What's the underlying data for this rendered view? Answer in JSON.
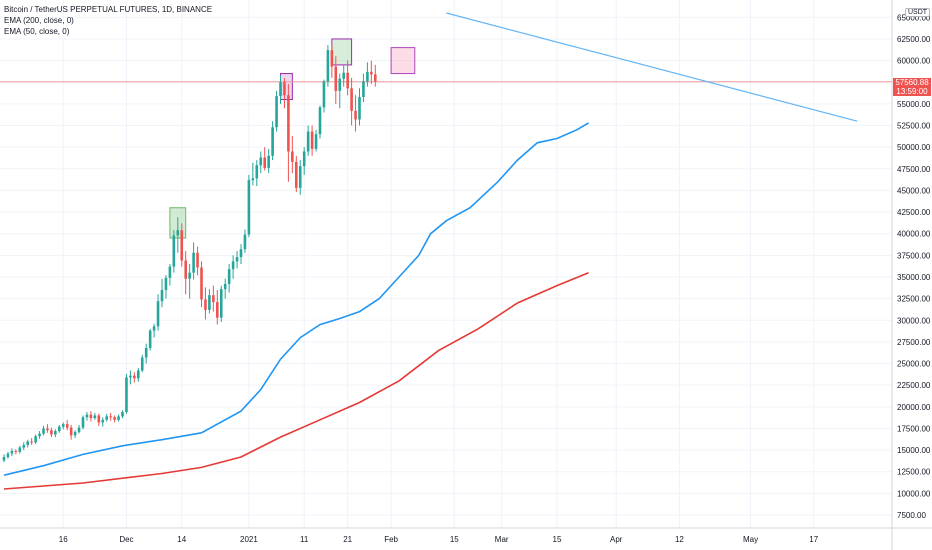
{
  "legend": {
    "symbol": "Bitcoin / TetherUS PERPETUAL FUTURES, 1D, BINANCE",
    "ema200": "EMA (200, close, 0)",
    "ema50": "EMA (50, close, 0)"
  },
  "currency": "USDT",
  "current_price": "57560.88",
  "countdown": "13:59:00",
  "colors": {
    "up": "#26a69a",
    "down": "#ef5350",
    "ema50": "#2196f3",
    "ema200": "#e53935",
    "trendline": "#64b5f6",
    "grid": "#f0f3fa",
    "price_line": "#ef9a9a"
  },
  "chart_data": {
    "type": "candlestick",
    "title": "Bitcoin / TetherUS PERPETUAL FUTURES, 1D, BINANCE",
    "x_ticks": [
      "16",
      "Dec",
      "14",
      "2021",
      "11",
      "21",
      "Feb",
      "15",
      "Mar",
      "15",
      "Apr",
      "12",
      "May",
      "17"
    ],
    "y_ticks": [
      7500,
      10000,
      12500,
      15000,
      17500,
      20000,
      22500,
      25000,
      27500,
      30000,
      32500,
      35000,
      37500,
      40000,
      42500,
      45000,
      47500,
      50000,
      52500,
      55000,
      57500,
      60000,
      62500,
      65000
    ],
    "ylim": [
      6000,
      67000
    ],
    "series": [
      {
        "name": "EMA (50, close, 0)",
        "points": [
          {
            "day": 0,
            "value": 12100
          },
          {
            "day": 10,
            "value": 13200
          },
          {
            "day": 20,
            "value": 14500
          },
          {
            "day": 30,
            "value": 15500
          },
          {
            "day": 40,
            "value": 16200
          },
          {
            "day": 50,
            "value": 17000
          },
          {
            "day": 60,
            "value": 19500
          },
          {
            "day": 65,
            "value": 22000
          },
          {
            "day": 70,
            "value": 25500
          },
          {
            "day": 75,
            "value": 28000
          },
          {
            "day": 80,
            "value": 29500
          },
          {
            "day": 85,
            "value": 30200
          },
          {
            "day": 90,
            "value": 31000
          },
          {
            "day": 95,
            "value": 32500
          },
          {
            "day": 100,
            "value": 35000
          },
          {
            "day": 105,
            "value": 37500
          },
          {
            "day": 108,
            "value": 40000
          },
          {
            "day": 112,
            "value": 41500
          },
          {
            "day": 118,
            "value": 43000
          },
          {
            "day": 125,
            "value": 46000
          },
          {
            "day": 130,
            "value": 48500
          },
          {
            "day": 135,
            "value": 50500
          },
          {
            "day": 140,
            "value": 51000
          },
          {
            "day": 145,
            "value": 52000
          },
          {
            "day": 148,
            "value": 52800
          }
        ]
      },
      {
        "name": "EMA (200, close, 0)",
        "points": [
          {
            "day": 0,
            "value": 10500
          },
          {
            "day": 20,
            "value": 11200
          },
          {
            "day": 40,
            "value": 12300
          },
          {
            "day": 50,
            "value": 13000
          },
          {
            "day": 60,
            "value": 14200
          },
          {
            "day": 70,
            "value": 16500
          },
          {
            "day": 80,
            "value": 18500
          },
          {
            "day": 90,
            "value": 20500
          },
          {
            "day": 100,
            "value": 23000
          },
          {
            "day": 110,
            "value": 26500
          },
          {
            "day": 120,
            "value": 29000
          },
          {
            "day": 130,
            "value": 32000
          },
          {
            "day": 140,
            "value": 34000
          },
          {
            "day": 148,
            "value": 35500
          }
        ]
      }
    ],
    "candles": [
      [
        13800,
        14500,
        13600,
        14200
      ],
      [
        14200,
        14800,
        14000,
        14600
      ],
      [
        14600,
        15200,
        14300,
        14900
      ],
      [
        14900,
        15100,
        14500,
        14800
      ],
      [
        14800,
        15500,
        14600,
        15300
      ],
      [
        15300,
        15900,
        15000,
        15600
      ],
      [
        15600,
        16200,
        15300,
        16000
      ],
      [
        16000,
        16400,
        15600,
        15900
      ],
      [
        15900,
        16800,
        15700,
        16600
      ],
      [
        16600,
        17200,
        16300,
        16900
      ],
      [
        16900,
        17800,
        16700,
        17500
      ],
      [
        17500,
        18000,
        17000,
        17300
      ],
      [
        17300,
        17600,
        16500,
        16800
      ],
      [
        16800,
        17400,
        16500,
        17200
      ],
      [
        17200,
        17900,
        17000,
        17700
      ],
      [
        17700,
        18200,
        17400,
        18000
      ],
      [
        18000,
        18500,
        17300,
        17600
      ],
      [
        17600,
        17900,
        16200,
        16700
      ],
      [
        16700,
        17300,
        16400,
        17100
      ],
      [
        17100,
        17900,
        16900,
        17600
      ],
      [
        17600,
        19000,
        17400,
        18800
      ],
      [
        18800,
        19400,
        18400,
        19100
      ],
      [
        19100,
        19500,
        18300,
        18700
      ],
      [
        18700,
        19300,
        18500,
        19000
      ],
      [
        19000,
        19200,
        17800,
        18200
      ],
      [
        18200,
        18800,
        17700,
        18500
      ],
      [
        18500,
        19200,
        18300,
        18900
      ],
      [
        18900,
        19300,
        18400,
        18800
      ],
      [
        18800,
        19000,
        18200,
        18500
      ],
      [
        18500,
        19100,
        18300,
        18900
      ],
      [
        18900,
        19600,
        18700,
        19400
      ],
      [
        19400,
        23800,
        19200,
        23400
      ],
      [
        23400,
        24200,
        22600,
        23600
      ],
      [
        23600,
        24000,
        22800,
        23300
      ],
      [
        23300,
        24500,
        22900,
        24200
      ],
      [
        24200,
        26000,
        24000,
        25700
      ],
      [
        25700,
        27300,
        25000,
        26800
      ],
      [
        26800,
        29000,
        26500,
        28800
      ],
      [
        28800,
        29600,
        28000,
        29300
      ],
      [
        29300,
        33000,
        28800,
        32200
      ],
      [
        32200,
        34800,
        31500,
        33500
      ],
      [
        33500,
        35200,
        32500,
        34900
      ],
      [
        34900,
        36500,
        34000,
        36200
      ],
      [
        36200,
        40400,
        35500,
        39800
      ],
      [
        39800,
        41900,
        37800,
        40400
      ],
      [
        40400,
        41200,
        36200,
        36900
      ],
      [
        36900,
        38000,
        33000,
        34800
      ],
      [
        34800,
        36500,
        32500,
        35500
      ],
      [
        35500,
        39000,
        34700,
        37800
      ],
      [
        37800,
        38500,
        35200,
        36100
      ],
      [
        36100,
        36800,
        31500,
        32400
      ],
      [
        32400,
        33800,
        30100,
        31200
      ],
      [
        31200,
        33600,
        30800,
        32900
      ],
      [
        32900,
        34000,
        31000,
        32100
      ],
      [
        32100,
        33500,
        29500,
        30300
      ],
      [
        30300,
        34000,
        29800,
        33600
      ],
      [
        33600,
        34800,
        32500,
        34200
      ],
      [
        34200,
        36500,
        33200,
        35900
      ],
      [
        35900,
        37500,
        34800,
        36800
      ],
      [
        36800,
        38000,
        36000,
        37300
      ],
      [
        37300,
        38800,
        36500,
        38200
      ],
      [
        38200,
        40500,
        37800,
        39900
      ],
      [
        39900,
        46800,
        39600,
        46200
      ],
      [
        46200,
        48200,
        45600,
        46400
      ],
      [
        46400,
        48500,
        45500,
        47900
      ],
      [
        47900,
        49500,
        47000,
        48800
      ],
      [
        48800,
        50000,
        47300,
        47600
      ],
      [
        47600,
        49800,
        47000,
        49000
      ],
      [
        49000,
        53000,
        48500,
        52300
      ],
      [
        52300,
        56500,
        51800,
        55900
      ],
      [
        55900,
        58300,
        55000,
        57500
      ],
      [
        57500,
        58000,
        54500,
        56000
      ],
      [
        56000,
        57300,
        46000,
        49500
      ],
      [
        49500,
        51300,
        47000,
        48300
      ],
      [
        48300,
        49000,
        44800,
        45300
      ],
      [
        45300,
        48500,
        44500,
        47800
      ],
      [
        47800,
        50000,
        46800,
        49500
      ],
      [
        49500,
        52500,
        49000,
        51800
      ],
      [
        51800,
        52500,
        49000,
        49800
      ],
      [
        49800,
        52000,
        49500,
        51500
      ],
      [
        51500,
        54800,
        51000,
        54600
      ],
      [
        54600,
        57800,
        54000,
        57600
      ],
      [
        57600,
        61800,
        57000,
        61200
      ],
      [
        61200,
        61800,
        58000,
        59300
      ],
      [
        59300,
        60500,
        55000,
        56500
      ],
      [
        56500,
        58500,
        54500,
        57900
      ],
      [
        57900,
        59500,
        57000,
        58600
      ],
      [
        58600,
        60000,
        56000,
        56800
      ],
      [
        56800,
        58000,
        52500,
        54200
      ],
      [
        54200,
        56000,
        51800,
        53200
      ],
      [
        53200,
        56800,
        52500,
        55800
      ],
      [
        55800,
        58500,
        55200,
        57600
      ],
      [
        57600,
        59800,
        57000,
        58700
      ],
      [
        58700,
        60000,
        57300,
        58400
      ],
      [
        58400,
        59500,
        57000,
        57600
      ]
    ],
    "annotations": {
      "trendline": {
        "from": {
          "day": 112,
          "value": 65500
        },
        "to": {
          "day": 216,
          "value": 53000
        }
      },
      "boxes": [
        {
          "from_day": 42,
          "to_day": 46,
          "low": 39500,
          "high": 43000,
          "label": ""
        },
        {
          "from_day": 70,
          "to_day": 73,
          "low": 55500,
          "high": 58500,
          "label": ""
        },
        {
          "from_day": 83,
          "to_day": 88,
          "low": 59500,
          "high": 62500,
          "label": ""
        },
        {
          "from_day": 98,
          "to_day": 104,
          "low": 58500,
          "high": 61500,
          "label": ""
        }
      ]
    },
    "last_price": 57560.88
  }
}
